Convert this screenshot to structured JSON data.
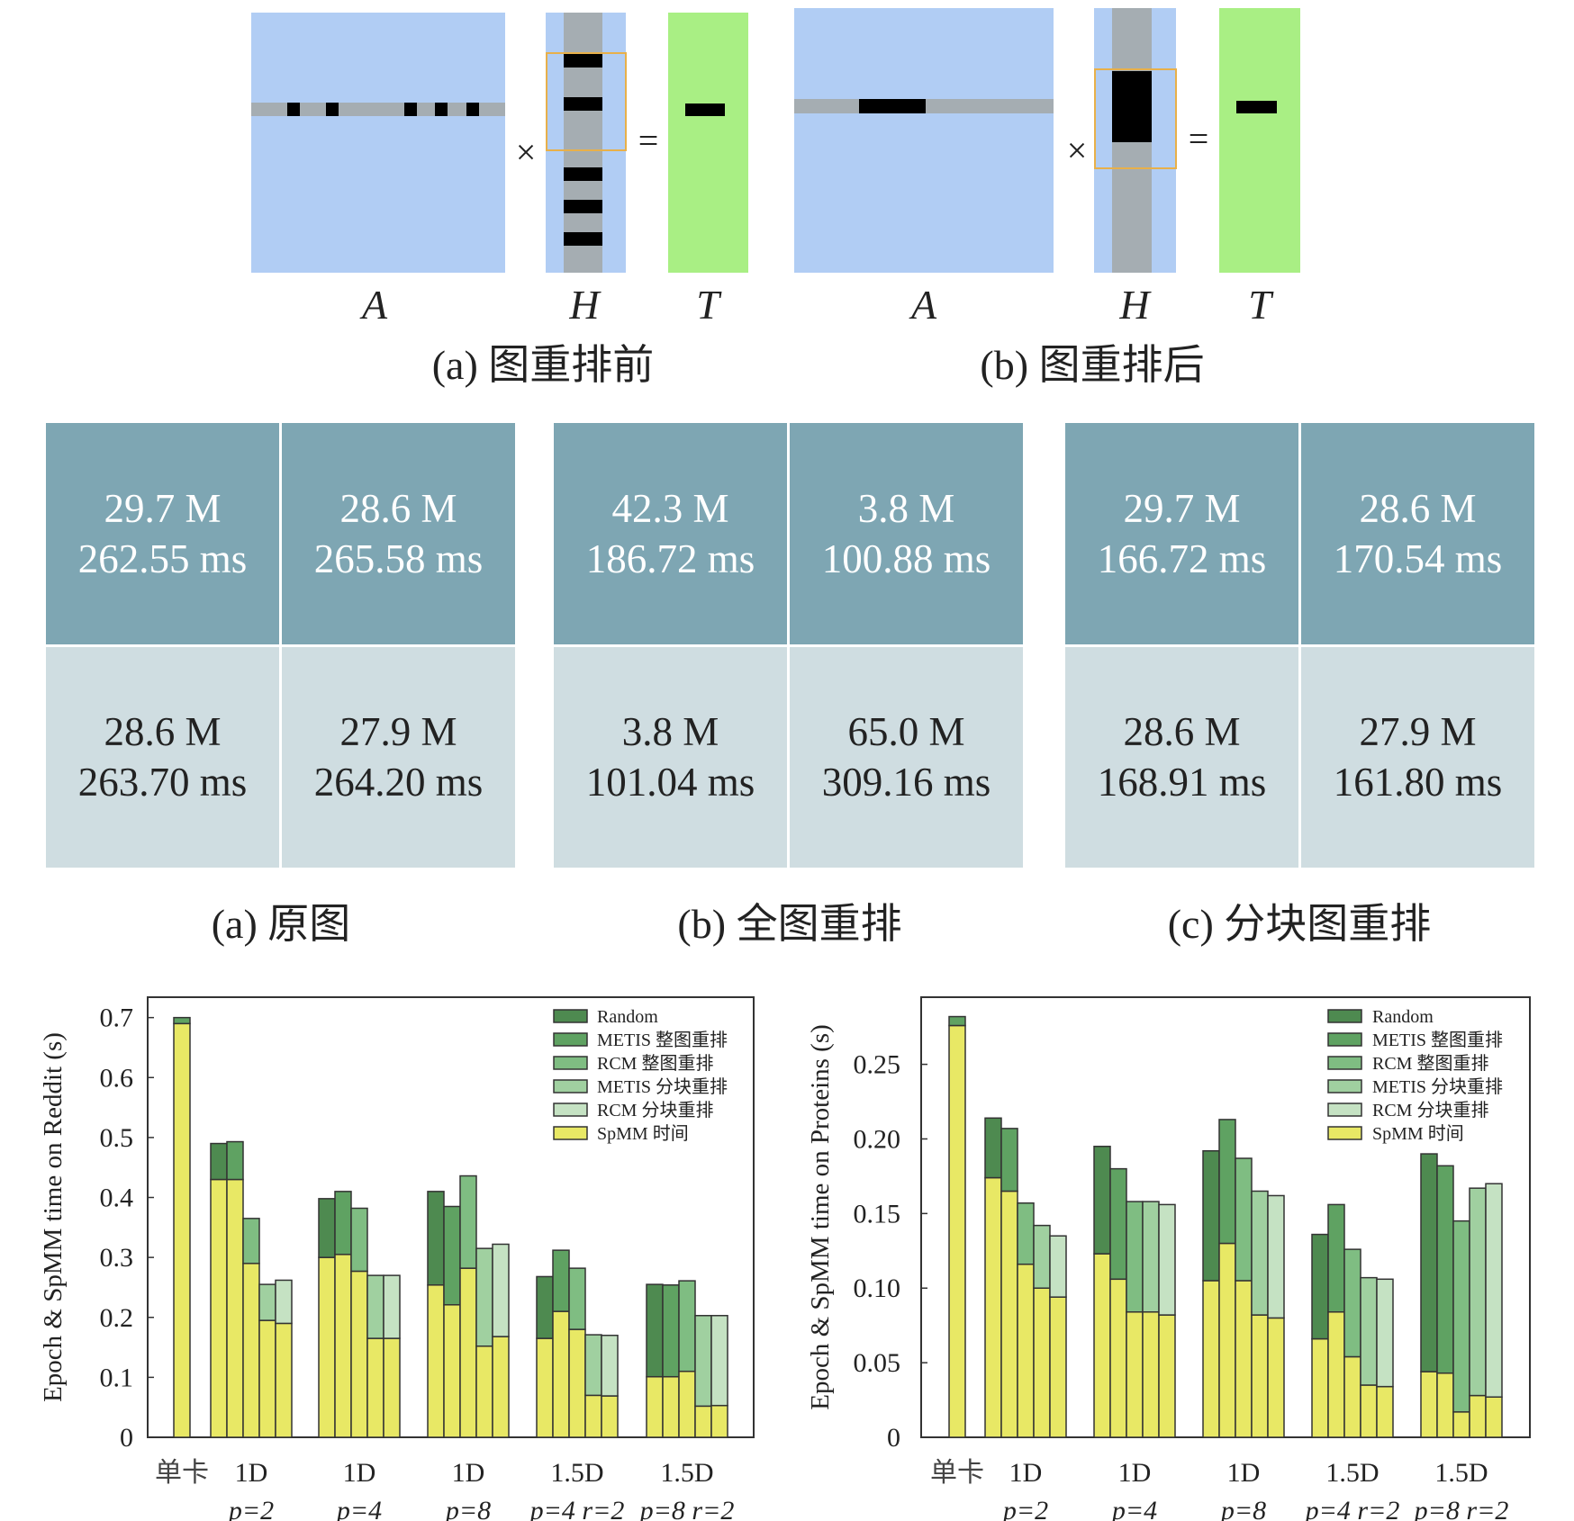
{
  "figure1": {
    "panels": [
      {
        "labels": {
          "a": "A",
          "h": "H",
          "t": "T"
        },
        "times": "×",
        "equals": "=",
        "caption": "(a) 图重排前"
      },
      {
        "labels": {
          "a": "A",
          "h": "H",
          "t": "T"
        },
        "times": "×",
        "equals": "=",
        "caption": "(b) 图重排后"
      }
    ],
    "colors": {
      "matrix_a": "#b1cdf4",
      "row_gray": "#a5adb2",
      "t_green": "#a9ef84",
      "highlight": "#e8b04a"
    }
  },
  "figure2": {
    "groups": [
      {
        "caption": "(a) 原图",
        "cells": [
          {
            "edges": "29.7 M",
            "time": "262.55 ms"
          },
          {
            "edges": "28.6 M",
            "time": "265.58 ms"
          },
          {
            "edges": "28.6 M",
            "time": "263.70 ms"
          },
          {
            "edges": "27.9 M",
            "time": "264.20 ms"
          }
        ]
      },
      {
        "caption": "(b) 全图重排",
        "cells": [
          {
            "edges": "42.3 M",
            "time": "186.72 ms"
          },
          {
            "edges": "3.8 M",
            "time": "100.88 ms"
          },
          {
            "edges": "3.8 M",
            "time": "101.04 ms"
          },
          {
            "edges": "65.0 M",
            "time": "309.16 ms"
          }
        ]
      },
      {
        "caption": "(c) 分块图重排",
        "cells": [
          {
            "edges": "29.7 M",
            "time": "166.72 ms"
          },
          {
            "edges": "28.6 M",
            "time": "170.54 ms"
          },
          {
            "edges": "28.6 M",
            "time": "168.91 ms"
          },
          {
            "edges": "27.9 M",
            "time": "161.80 ms"
          }
        ]
      }
    ],
    "colors": {
      "diagonal": "#7ea6b3",
      "off_diagonal": "#cfdde1"
    }
  },
  "chart_data": [
    {
      "type": "bar",
      "stacked": true,
      "ylabel": "Epoch & SpMM time on Reddit (s)",
      "ylim": [
        0,
        0.734
      ],
      "yticks": [
        "0",
        "0.1",
        "0.2",
        "0.3",
        "0.4",
        "0.5",
        "0.6",
        "0.7"
      ],
      "ytick_values": [
        0,
        0.1,
        0.2,
        0.3,
        0.4,
        0.5,
        0.6,
        0.7
      ],
      "legend": {
        "placement": "top-right",
        "entries": [
          "Random",
          "METIS 整图重排",
          "RCM 整图重排",
          "METIS 分块重排",
          "RCM 分块重排",
          "SpMM 时间"
        ]
      },
      "colors": [
        "#4e8a50",
        "#5fa262",
        "#7fbd82",
        "#a0d0a0",
        "#c5e2c3",
        "#e8e865"
      ],
      "single": {
        "label": "单卡",
        "spmm": 0.69,
        "total": 0.7
      },
      "groups": [
        {
          "label": "1D",
          "sublabel": "p=2",
          "spmm": [
            0.43,
            0.43,
            0.29,
            0.195,
            0.19
          ],
          "total": [
            0.49,
            0.493,
            0.365,
            0.255,
            0.262
          ]
        },
        {
          "label": "1D",
          "sublabel": "p=4",
          "spmm": [
            0.3,
            0.305,
            0.277,
            0.165,
            0.165
          ],
          "total": [
            0.398,
            0.41,
            0.382,
            0.27,
            0.27
          ]
        },
        {
          "label": "1D",
          "sublabel": "p=8",
          "spmm": [
            0.254,
            0.221,
            0.282,
            0.152,
            0.168
          ],
          "total": [
            0.41,
            0.385,
            0.436,
            0.315,
            0.322
          ]
        },
        {
          "label": "1.5D",
          "sublabel": "p=4 r=2",
          "spmm": [
            0.165,
            0.21,
            0.18,
            0.07,
            0.069
          ],
          "total": [
            0.268,
            0.312,
            0.282,
            0.171,
            0.17
          ]
        },
        {
          "label": "1.5D",
          "sublabel": "p=8 r=2",
          "spmm": [
            0.101,
            0.101,
            0.11,
            0.052,
            0.053
          ],
          "total": [
            0.255,
            0.254,
            0.261,
            0.203,
            0.203
          ]
        }
      ]
    },
    {
      "type": "bar",
      "stacked": true,
      "ylabel": "Epoch & SpMM time on Proteins (s)",
      "ylim": [
        0,
        0.295
      ],
      "yticks": [
        "0",
        "0.05",
        "0.10",
        "0.15",
        "0.20",
        "0.25"
      ],
      "ytick_values": [
        0,
        0.05,
        0.1,
        0.15,
        0.2,
        0.25
      ],
      "legend": {
        "placement": "top-right",
        "entries": [
          "Random",
          "METIS 整图重排",
          "RCM 整图重排",
          "METIS 分块重排",
          "RCM 分块重排",
          "SpMM 时间"
        ]
      },
      "colors": [
        "#4e8a50",
        "#5fa262",
        "#7fbd82",
        "#a0d0a0",
        "#c5e2c3",
        "#e8e865"
      ],
      "single": {
        "label": "单卡",
        "spmm": 0.276,
        "total": 0.282
      },
      "groups": [
        {
          "label": "1D",
          "sublabel": "p=2",
          "spmm": [
            0.174,
            0.165,
            0.116,
            0.1,
            0.094
          ],
          "total": [
            0.214,
            0.207,
            0.157,
            0.142,
            0.135
          ]
        },
        {
          "label": "1D",
          "sublabel": "p=4",
          "spmm": [
            0.123,
            0.106,
            0.084,
            0.084,
            0.082
          ],
          "total": [
            0.195,
            0.18,
            0.158,
            0.158,
            0.156
          ]
        },
        {
          "label": "1D",
          "sublabel": "p=8",
          "spmm": [
            0.105,
            0.13,
            0.105,
            0.082,
            0.08
          ],
          "total": [
            0.192,
            0.213,
            0.187,
            0.165,
            0.162
          ]
        },
        {
          "label": "1.5D",
          "sublabel": "p=4 r=2",
          "spmm": [
            0.066,
            0.084,
            0.054,
            0.035,
            0.034
          ],
          "total": [
            0.136,
            0.156,
            0.126,
            0.107,
            0.106
          ]
        },
        {
          "label": "1.5D",
          "sublabel": "p=8 r=2",
          "spmm": [
            0.044,
            0.043,
            0.017,
            0.028,
            0.027
          ],
          "total": [
            0.19,
            0.182,
            0.145,
            0.167,
            0.17
          ]
        }
      ]
    }
  ]
}
